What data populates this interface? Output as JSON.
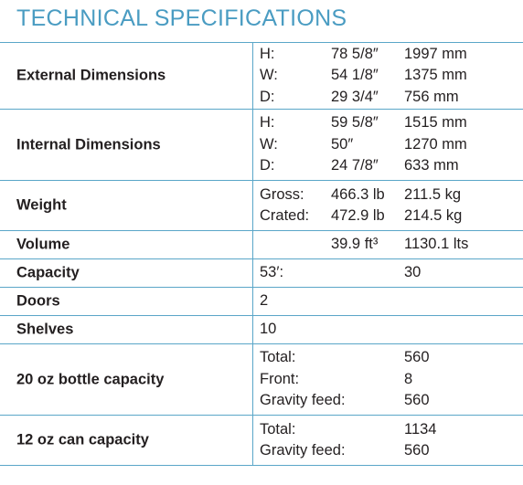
{
  "title": "TECHNICAL SPECIFICATIONS",
  "specs": [
    {
      "label": "External Dimensions",
      "lines": [
        {
          "sub": "H:",
          "imperial": "78 5/8″",
          "metric": "1997 mm"
        },
        {
          "sub": "W:",
          "imperial": "54 1/8″",
          "metric": "1375 mm"
        },
        {
          "sub": "D:",
          "imperial": "29 3/4″",
          "metric": "756 mm"
        }
      ]
    },
    {
      "label": "Internal Dimensions",
      "lines": [
        {
          "sub": "H:",
          "imperial": "59 5/8″",
          "metric": "1515 mm"
        },
        {
          "sub": "W:",
          "imperial": "50″",
          "metric": "1270 mm"
        },
        {
          "sub": "D:",
          "imperial": "24 7/8″",
          "metric": "633 mm"
        }
      ]
    },
    {
      "label": "Weight",
      "lines": [
        {
          "sub": "Gross:",
          "imperial": "466.3 lb",
          "metric": "211.5 kg"
        },
        {
          "sub": "Crated:",
          "imperial": "472.9 lb",
          "metric": "214.5 kg"
        }
      ]
    },
    {
      "label": "Volume",
      "lines": [
        {
          "sub": "",
          "imperial": "39.9 ft³",
          "metric": "1130.1 lts"
        }
      ]
    },
    {
      "label": "Capacity",
      "lines": [
        {
          "sub": "53′:",
          "imperial": "",
          "metric": "30"
        }
      ]
    },
    {
      "label": "Doors",
      "lines": [
        {
          "sub": "2",
          "imperial": "",
          "metric": ""
        }
      ]
    },
    {
      "label": "Shelves",
      "lines": [
        {
          "sub": "10",
          "imperial": "",
          "metric": ""
        }
      ]
    },
    {
      "label": "20 oz bottle capacity",
      "lines": [
        {
          "sub": "Total:",
          "imperial": "",
          "metric": "560"
        },
        {
          "sub": "Front:",
          "imperial": "",
          "metric": "8"
        },
        {
          "sub": "Gravity feed:",
          "imperial": "",
          "metric": "560"
        }
      ]
    },
    {
      "label": "12 oz can capacity",
      "lines": [
        {
          "sub": "Total:",
          "imperial": "",
          "metric": "1134"
        },
        {
          "sub": "Gravity feed:",
          "imperial": "",
          "metric": "560"
        }
      ]
    }
  ]
}
